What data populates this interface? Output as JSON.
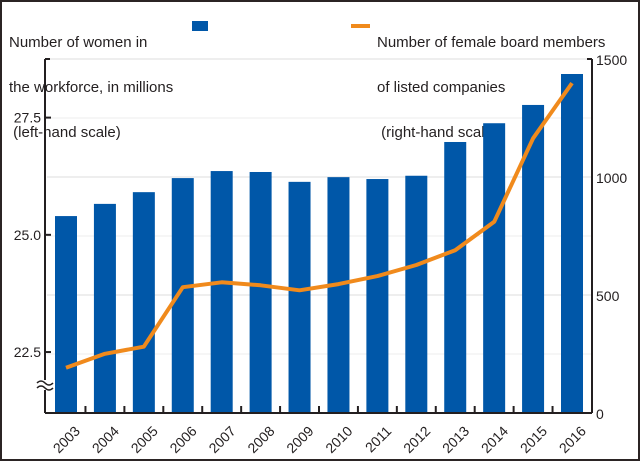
{
  "chart_data": {
    "type": "bar+line",
    "title": "",
    "categories": [
      "2003",
      "2004",
      "2005",
      "2006",
      "2007",
      "2008",
      "2009",
      "2010",
      "2011",
      "2012",
      "2013",
      "2014",
      "2015",
      "2016"
    ],
    "series": [
      {
        "name": "Number of women in the workforce, in millions (left-hand scale)",
        "type": "bar",
        "axis": "left",
        "color": "#0057a8",
        "values": [
          25.4,
          25.66,
          25.91,
          26.21,
          26.36,
          26.34,
          26.13,
          26.23,
          26.19,
          26.26,
          26.98,
          27.38,
          27.77,
          28.43
        ]
      },
      {
        "name": "Number of female board members of listed companies (right-hand scale)",
        "type": "line",
        "axis": "right",
        "color": "#f08a1c",
        "values": [
          192,
          251,
          281,
          533,
          554,
          541,
          520,
          546,
          580,
          627,
          690,
          810,
          1164,
          1398
        ]
      }
    ],
    "left_axis": {
      "ylim": [
        21.2,
        28.75
      ],
      "ticks": [
        22.5,
        25.0,
        27.5
      ],
      "tick_labels": [
        "22.5",
        "25.0",
        "27.5"
      ],
      "axis_break": true
    },
    "right_axis": {
      "ylim": [
        0,
        1500
      ],
      "ticks": [
        0,
        500,
        1000,
        1500
      ],
      "tick_labels": [
        "0",
        "500",
        "1000",
        "1500"
      ]
    },
    "grid": true,
    "legend": {
      "left": {
        "lines": [
          "Number of women in",
          "the workforce, in millions",
          " (left-hand scale)"
        ],
        "placement": "top-left"
      },
      "right": {
        "lines": [
          "Number of female board members",
          "of listed companies",
          " (right-hand scale)"
        ],
        "placement": "top-right"
      }
    },
    "xlabel": "",
    "ylabel_left": "",
    "ylabel_right": ""
  }
}
